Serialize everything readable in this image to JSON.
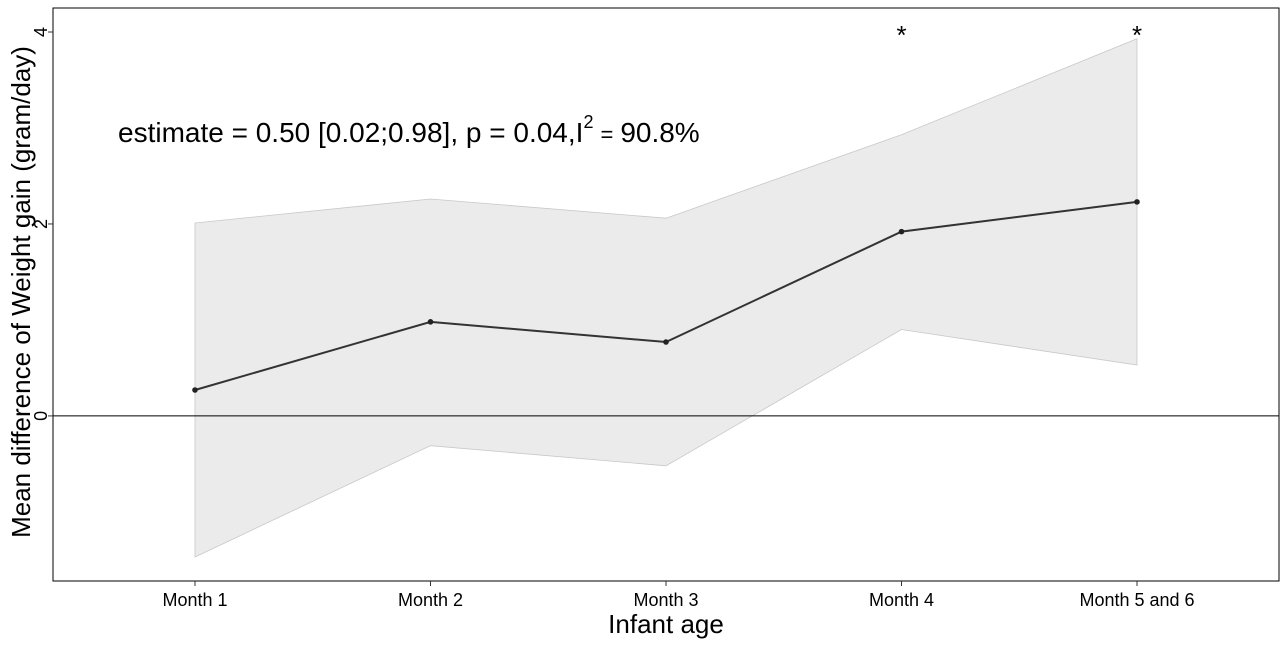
{
  "chart_data": {
    "type": "line",
    "categories": [
      "Month 1",
      "Month 2",
      "Month 3",
      "Month 4",
      "Month 5 and 6"
    ],
    "series": [
      {
        "values": [
          0.27,
          0.98,
          0.77,
          1.92,
          2.23
        ],
        "ci_lower": [
          -1.47,
          -0.31,
          -0.52,
          0.9,
          0.53
        ],
        "ci_upper": [
          2.01,
          2.26,
          2.06,
          2.93,
          3.93
        ]
      }
    ],
    "significance": [
      "",
      "",
      "",
      "*",
      "*"
    ],
    "xlabel": "Infant age",
    "ylabel": "Mean difference of Weight gain (gram/day)",
    "yticks": [
      0,
      2,
      4
    ],
    "ylim": [
      -1.72,
      4.25
    ],
    "reference_line": 0,
    "annotation": {
      "main": "estimate = 0.50 [0.02;0.98], p = 0.04,",
      "i_letter": "I",
      "exponent": "2",
      "equals": "=",
      "i2_value": "90.8%"
    },
    "colors": {
      "line": "#333333",
      "band": "#ebebeb",
      "band_edge": "#c8c8c8",
      "frame": "#000000"
    }
  }
}
